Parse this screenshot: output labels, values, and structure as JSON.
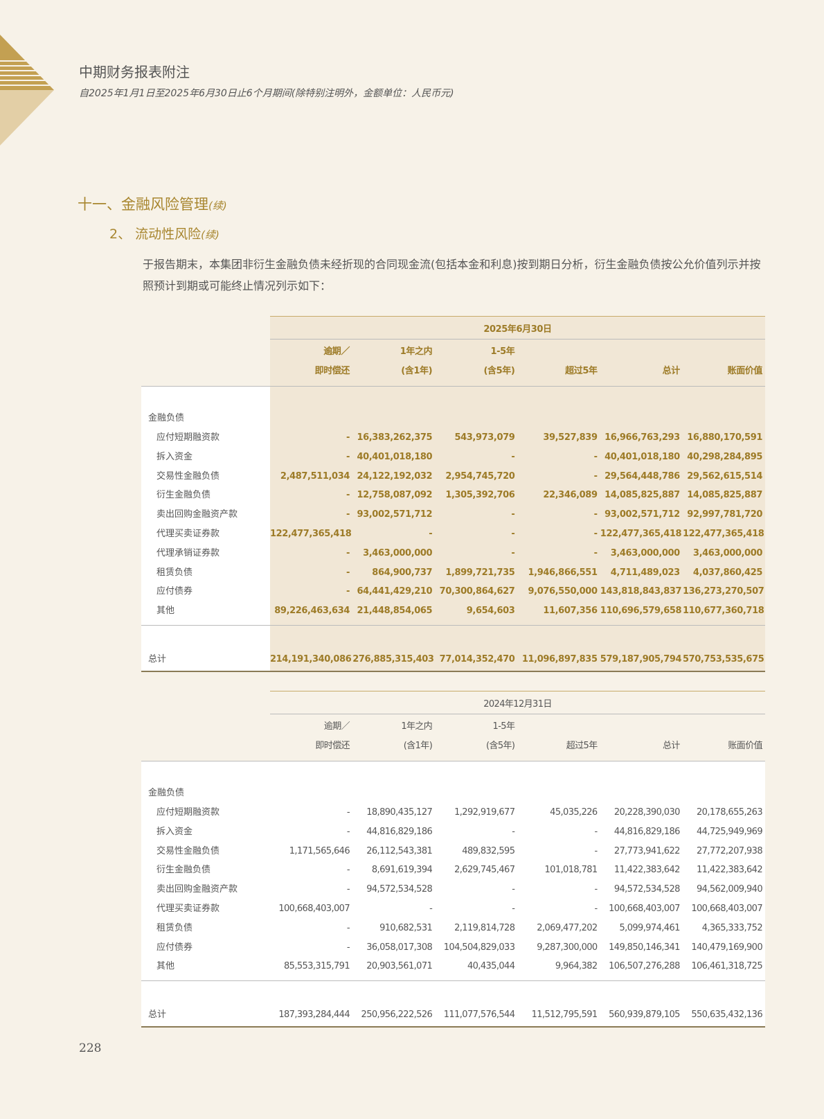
{
  "header": {
    "title": "中期财务报表附注",
    "subtitle": "自2025年1月1日至2025年6月30日止6个月期间(除特别注明外，金额单位：人民币元)"
  },
  "section": {
    "number_title": "十一、金融风险管理",
    "continued": "(续)"
  },
  "subsection": {
    "number_title": "2、  流动性风险",
    "continued": "(续)"
  },
  "paragraph": "于报告期末，本集团非衍生金融负债未经折现的合同现金流(包括本金和利息)按到期日分析，衍生金融负债按公允价值列示并按照预计到期或可能终止情况列示如下：",
  "columns": [
    {
      "line1": "逾期／",
      "line2": "即时偿还"
    },
    {
      "line1": "1年之内",
      "line2": "(含1年)"
    },
    {
      "line1": "1-5年",
      "line2": "(含5年)"
    },
    {
      "line1": "",
      "line2": "超过5年"
    },
    {
      "line1": "",
      "line2": "总计"
    },
    {
      "line1": "",
      "line2": "账面价值"
    }
  ],
  "group_label": "金融负债",
  "total_label": "总计",
  "tables": [
    {
      "date": "2025年6月30日",
      "rows": [
        {
          "label": "应付短期融资款",
          "values": [
            "-",
            "16,383,262,375",
            "543,973,079",
            "39,527,839",
            "16,966,763,293",
            "16,880,170,591"
          ]
        },
        {
          "label": "拆入资金",
          "values": [
            "-",
            "40,401,018,180",
            "-",
            "-",
            "40,401,018,180",
            "40,298,284,895"
          ]
        },
        {
          "label": "交易性金融负债",
          "values": [
            "2,487,511,034",
            "24,122,192,032",
            "2,954,745,720",
            "-",
            "29,564,448,786",
            "29,562,615,514"
          ]
        },
        {
          "label": "衍生金融负债",
          "values": [
            "-",
            "12,758,087,092",
            "1,305,392,706",
            "22,346,089",
            "14,085,825,887",
            "14,085,825,887"
          ]
        },
        {
          "label": "卖出回购金融资产款",
          "values": [
            "-",
            "93,002,571,712",
            "-",
            "-",
            "93,002,571,712",
            "92,997,781,720"
          ]
        },
        {
          "label": "代理买卖证券款",
          "values": [
            "122,477,365,418",
            "-",
            "-",
            "-",
            "122,477,365,418",
            "122,477,365,418"
          ]
        },
        {
          "label": "代理承销证券款",
          "values": [
            "-",
            "3,463,000,000",
            "-",
            "-",
            "3,463,000,000",
            "3,463,000,000"
          ]
        },
        {
          "label": "租赁负债",
          "values": [
            "-",
            "864,900,737",
            "1,899,721,735",
            "1,946,866,551",
            "4,711,489,023",
            "4,037,860,425"
          ]
        },
        {
          "label": "应付债券",
          "values": [
            "-",
            "64,441,429,210",
            "70,300,864,627",
            "9,076,550,000",
            "143,818,843,837",
            "136,273,270,507"
          ]
        },
        {
          "label": "其他",
          "values": [
            "89,226,463,634",
            "21,448,854,065",
            "9,654,603",
            "11,607,356",
            "110,696,579,658",
            "110,677,360,718"
          ]
        }
      ],
      "total": [
        "214,191,340,086",
        "276,885,315,403",
        "77,014,352,470",
        "11,096,897,835",
        "579,187,905,794",
        "570,753,535,675"
      ]
    },
    {
      "date": "2024年12月31日",
      "rows": [
        {
          "label": "应付短期融资款",
          "values": [
            "-",
            "18,890,435,127",
            "1,292,919,677",
            "45,035,226",
            "20,228,390,030",
            "20,178,655,263"
          ]
        },
        {
          "label": "拆入资金",
          "values": [
            "-",
            "44,816,829,186",
            "-",
            "-",
            "44,816,829,186",
            "44,725,949,969"
          ]
        },
        {
          "label": "交易性金融负债",
          "values": [
            "1,171,565,646",
            "26,112,543,381",
            "489,832,595",
            "-",
            "27,773,941,622",
            "27,772,207,938"
          ]
        },
        {
          "label": "衍生金融负债",
          "values": [
            "-",
            "8,691,619,394",
            "2,629,745,467",
            "101,018,781",
            "11,422,383,642",
            "11,422,383,642"
          ]
        },
        {
          "label": "卖出回购金融资产款",
          "values": [
            "-",
            "94,572,534,528",
            "-",
            "-",
            "94,572,534,528",
            "94,562,009,940"
          ]
        },
        {
          "label": "代理买卖证券款",
          "values": [
            "100,668,403,007",
            "-",
            "-",
            "-",
            "100,668,403,007",
            "100,668,403,007"
          ]
        },
        {
          "label": "租赁负债",
          "values": [
            "-",
            "910,682,531",
            "2,119,814,728",
            "2,069,477,202",
            "5,099,974,461",
            "4,365,333,752"
          ]
        },
        {
          "label": "应付债券",
          "values": [
            "-",
            "36,058,017,308",
            "104,504,829,033",
            "9,287,300,000",
            "149,850,146,341",
            "140,479,169,900"
          ]
        },
        {
          "label": "其他",
          "values": [
            "85,553,315,791",
            "20,903,561,071",
            "40,435,044",
            "9,964,382",
            "106,507,276,288",
            "106,461,318,725"
          ]
        }
      ],
      "total": [
        "187,393,284,444",
        "250,956,222,526",
        "111,077,576,544",
        "11,512,795,591",
        "560,939,879,105",
        "550,635,432,136"
      ]
    }
  ],
  "page_number": "228",
  "colors": {
    "gold": "#a8862f",
    "shade": "#f1e7d6",
    "page": "#f7f2e8"
  }
}
